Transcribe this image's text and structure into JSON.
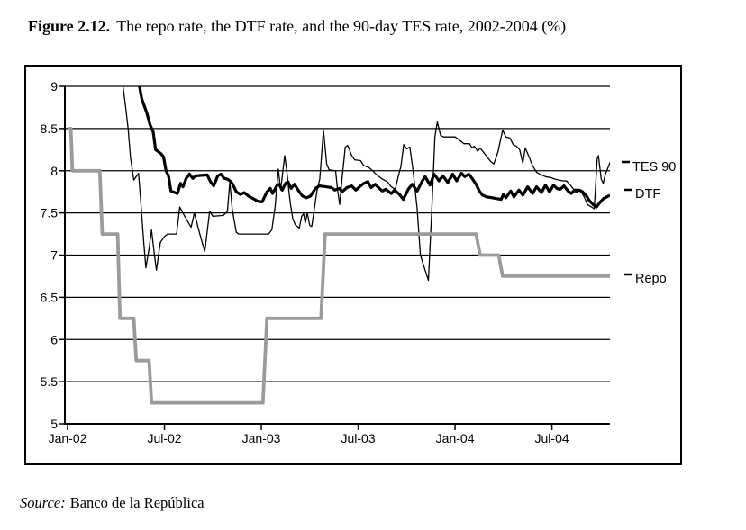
{
  "figure": {
    "title_label": "Figure 2.12.",
    "title_text": "The repo rate, the DTF rate, and the 90-day TES rate, 2002-2004 (%)",
    "source_label": "Source:",
    "source_text": "Banco de la República"
  },
  "chart_data": {
    "type": "line",
    "title": "The repo rate, the DTF rate, and the 90-day TES rate, 2002-2004 (%)",
    "xlabel": "",
    "ylabel": "",
    "grid": true,
    "legend_position": "right-inside",
    "x_axis": {
      "unit": "months-since-Jan-2002",
      "tick_months": [
        0,
        6,
        12,
        18,
        24,
        30
      ],
      "tick_labels": [
        "Jan-02",
        "Jul-02",
        "Jan-03",
        "Jul-03",
        "Jan-04",
        "Jul-04"
      ],
      "x_max_month": 33.6
    },
    "y_axis": {
      "range": [
        5,
        9
      ],
      "ticks": [
        5,
        5.5,
        6,
        6.5,
        7,
        7.5,
        8,
        8.5,
        9
      ],
      "tick_labels": [
        "5",
        "5.5",
        "6",
        "6.5",
        "7",
        "7.5",
        "8",
        "8.5",
        "9"
      ]
    },
    "series": [
      {
        "name": "TES 90",
        "color": "#000000",
        "stroke_width": 1.3,
        "points": [
          [
            3.4,
            9.05
          ],
          [
            3.6,
            8.75
          ],
          [
            3.75,
            8.5
          ],
          [
            3.9,
            8.15
          ],
          [
            4.1,
            7.89
          ],
          [
            4.25,
            7.93
          ],
          [
            4.4,
            7.97
          ],
          [
            4.55,
            7.6
          ],
          [
            4.7,
            7.2
          ],
          [
            4.85,
            6.85
          ],
          [
            5.05,
            7.08
          ],
          [
            5.2,
            7.3
          ],
          [
            5.35,
            7.05
          ],
          [
            5.5,
            6.82
          ],
          [
            5.75,
            7.15
          ],
          [
            6.0,
            7.22
          ],
          [
            6.2,
            7.25
          ],
          [
            6.75,
            7.25
          ],
          [
            6.95,
            7.57
          ],
          [
            7.2,
            7.48
          ],
          [
            7.5,
            7.38
          ],
          [
            7.65,
            7.33
          ],
          [
            7.85,
            7.5
          ],
          [
            8.15,
            7.28
          ],
          [
            8.5,
            7.04
          ],
          [
            8.8,
            7.52
          ],
          [
            9.0,
            7.46
          ],
          [
            9.65,
            7.47
          ],
          [
            9.9,
            7.52
          ],
          [
            10.05,
            7.87
          ],
          [
            10.2,
            7.54
          ],
          [
            10.45,
            7.27
          ],
          [
            10.6,
            7.25
          ],
          [
            12.45,
            7.25
          ],
          [
            12.65,
            7.3
          ],
          [
            12.85,
            7.57
          ],
          [
            13.05,
            8.02
          ],
          [
            13.2,
            7.77
          ],
          [
            13.45,
            8.18
          ],
          [
            13.6,
            7.96
          ],
          [
            13.7,
            7.77
          ],
          [
            13.8,
            7.61
          ],
          [
            13.95,
            7.43
          ],
          [
            14.1,
            7.36
          ],
          [
            14.35,
            7.32
          ],
          [
            14.5,
            7.46
          ],
          [
            14.62,
            7.49
          ],
          [
            14.72,
            7.38
          ],
          [
            14.85,
            7.5
          ],
          [
            15.0,
            7.35
          ],
          [
            15.12,
            7.34
          ],
          [
            15.3,
            7.57
          ],
          [
            15.45,
            7.77
          ],
          [
            15.62,
            7.9
          ],
          [
            15.85,
            8.48
          ],
          [
            16.05,
            8.08
          ],
          [
            16.2,
            8.01
          ],
          [
            16.6,
            8.0
          ],
          [
            16.72,
            7.78
          ],
          [
            16.85,
            7.6
          ],
          [
            17.0,
            7.9
          ],
          [
            17.2,
            8.28
          ],
          [
            17.35,
            8.3
          ],
          [
            17.6,
            8.18
          ],
          [
            17.78,
            8.13
          ],
          [
            18.15,
            8.12
          ],
          [
            18.35,
            8.06
          ],
          [
            18.65,
            8.04
          ],
          [
            18.9,
            8.0
          ],
          [
            19.15,
            7.95
          ],
          [
            19.5,
            7.9
          ],
          [
            19.8,
            7.87
          ],
          [
            20.05,
            7.81
          ],
          [
            20.3,
            7.78
          ],
          [
            20.5,
            7.95
          ],
          [
            20.65,
            8.05
          ],
          [
            20.82,
            8.31
          ],
          [
            21.0,
            8.26
          ],
          [
            21.2,
            8.28
          ],
          [
            21.4,
            8.0
          ],
          [
            21.65,
            7.55
          ],
          [
            21.85,
            7.0
          ],
          [
            22.1,
            6.85
          ],
          [
            22.35,
            6.7
          ],
          [
            22.55,
            7.5
          ],
          [
            22.75,
            8.4
          ],
          [
            22.9,
            8.58
          ],
          [
            23.1,
            8.42
          ],
          [
            23.3,
            8.4
          ],
          [
            24.0,
            8.4
          ],
          [
            24.35,
            8.35
          ],
          [
            24.55,
            8.32
          ],
          [
            24.9,
            8.32
          ],
          [
            25.05,
            8.27
          ],
          [
            25.2,
            8.29
          ],
          [
            25.4,
            8.23
          ],
          [
            25.55,
            8.27
          ],
          [
            25.8,
            8.21
          ],
          [
            26.0,
            8.16
          ],
          [
            26.2,
            8.11
          ],
          [
            26.4,
            8.08
          ],
          [
            26.65,
            8.22
          ],
          [
            26.95,
            8.48
          ],
          [
            27.15,
            8.4
          ],
          [
            27.4,
            8.39
          ],
          [
            27.6,
            8.31
          ],
          [
            27.8,
            8.29
          ],
          [
            28.0,
            8.25
          ],
          [
            28.2,
            8.09
          ],
          [
            28.35,
            8.27
          ],
          [
            28.55,
            8.18
          ],
          [
            28.8,
            8.06
          ],
          [
            29.05,
            7.98
          ],
          [
            29.35,
            7.95
          ],
          [
            29.6,
            7.93
          ],
          [
            29.9,
            7.92
          ],
          [
            30.2,
            7.9
          ],
          [
            30.45,
            7.89
          ],
          [
            30.65,
            7.88
          ],
          [
            30.9,
            7.88
          ],
          [
            31.1,
            7.84
          ],
          [
            31.3,
            7.79
          ],
          [
            31.5,
            7.74
          ],
          [
            31.75,
            7.77
          ],
          [
            32.0,
            7.69
          ],
          [
            32.2,
            7.6
          ],
          [
            32.45,
            7.57
          ],
          [
            32.62,
            7.55
          ],
          [
            32.8,
            8.14
          ],
          [
            32.88,
            8.18
          ],
          [
            33.05,
            7.9
          ],
          [
            33.18,
            7.85
          ],
          [
            33.3,
            7.95
          ],
          [
            33.5,
            8.05
          ],
          [
            33.6,
            8.1
          ]
        ]
      },
      {
        "name": "DTF",
        "color": "#000000",
        "stroke_width": 3.2,
        "points": [
          [
            4.4,
            9.06
          ],
          [
            4.6,
            8.85
          ],
          [
            4.9,
            8.69
          ],
          [
            5.1,
            8.55
          ],
          [
            5.3,
            8.46
          ],
          [
            5.45,
            8.25
          ],
          [
            5.8,
            8.2
          ],
          [
            5.95,
            8.16
          ],
          [
            6.1,
            8.0
          ],
          [
            6.25,
            7.94
          ],
          [
            6.4,
            7.76
          ],
          [
            6.8,
            7.73
          ],
          [
            7.0,
            7.85
          ],
          [
            7.15,
            7.81
          ],
          [
            7.35,
            7.91
          ],
          [
            7.55,
            7.96
          ],
          [
            7.75,
            7.91
          ],
          [
            7.95,
            7.94
          ],
          [
            8.65,
            7.95
          ],
          [
            8.85,
            7.87
          ],
          [
            9.05,
            7.82
          ],
          [
            9.3,
            7.94
          ],
          [
            9.5,
            7.96
          ],
          [
            9.7,
            7.91
          ],
          [
            9.9,
            7.9
          ],
          [
            10.05,
            7.88
          ],
          [
            10.2,
            7.85
          ],
          [
            10.45,
            7.75
          ],
          [
            10.7,
            7.72
          ],
          [
            10.95,
            7.74
          ],
          [
            11.2,
            7.7
          ],
          [
            11.5,
            7.67
          ],
          [
            11.75,
            7.64
          ],
          [
            12.05,
            7.63
          ],
          [
            12.35,
            7.75
          ],
          [
            12.55,
            7.79
          ],
          [
            12.7,
            7.73
          ],
          [
            12.95,
            7.82
          ],
          [
            13.1,
            7.84
          ],
          [
            13.3,
            7.77
          ],
          [
            13.5,
            7.85
          ],
          [
            13.65,
            7.87
          ],
          [
            13.85,
            7.79
          ],
          [
            14.05,
            7.84
          ],
          [
            14.35,
            7.75
          ],
          [
            14.55,
            7.7
          ],
          [
            14.8,
            7.68
          ],
          [
            15.05,
            7.7
          ],
          [
            15.35,
            7.79
          ],
          [
            15.6,
            7.82
          ],
          [
            16.0,
            7.81
          ],
          [
            16.35,
            7.8
          ],
          [
            16.55,
            7.77
          ],
          [
            16.85,
            7.79
          ],
          [
            17.0,
            7.75
          ],
          [
            17.3,
            7.8
          ],
          [
            17.6,
            7.82
          ],
          [
            17.85,
            7.77
          ],
          [
            18.15,
            7.82
          ],
          [
            18.35,
            7.85
          ],
          [
            18.6,
            7.87
          ],
          [
            18.8,
            7.8
          ],
          [
            19.05,
            7.84
          ],
          [
            19.25,
            7.8
          ],
          [
            19.5,
            7.76
          ],
          [
            19.7,
            7.78
          ],
          [
            19.85,
            7.76
          ],
          [
            20.05,
            7.73
          ],
          [
            20.25,
            7.77
          ],
          [
            20.55,
            7.72
          ],
          [
            20.8,
            7.66
          ],
          [
            21.1,
            7.78
          ],
          [
            21.35,
            7.84
          ],
          [
            21.65,
            7.76
          ],
          [
            21.95,
            7.87
          ],
          [
            22.15,
            7.93
          ],
          [
            22.45,
            7.83
          ],
          [
            22.7,
            7.96
          ],
          [
            23.0,
            7.88
          ],
          [
            23.25,
            7.94
          ],
          [
            23.55,
            7.86
          ],
          [
            23.85,
            7.96
          ],
          [
            24.1,
            7.88
          ],
          [
            24.4,
            7.97
          ],
          [
            24.6,
            7.93
          ],
          [
            24.85,
            7.96
          ],
          [
            25.05,
            7.91
          ],
          [
            25.3,
            7.84
          ],
          [
            25.5,
            7.76
          ],
          [
            25.7,
            7.71
          ],
          [
            25.95,
            7.69
          ],
          [
            26.3,
            7.68
          ],
          [
            26.55,
            7.67
          ],
          [
            26.85,
            7.66
          ],
          [
            27.0,
            7.72
          ],
          [
            27.15,
            7.68
          ],
          [
            27.45,
            7.76
          ],
          [
            27.65,
            7.69
          ],
          [
            27.95,
            7.77
          ],
          [
            28.2,
            7.71
          ],
          [
            28.5,
            7.81
          ],
          [
            28.8,
            7.73
          ],
          [
            29.05,
            7.81
          ],
          [
            29.35,
            7.74
          ],
          [
            29.6,
            7.83
          ],
          [
            29.85,
            7.75
          ],
          [
            30.1,
            7.83
          ],
          [
            30.3,
            7.79
          ],
          [
            30.5,
            7.78
          ],
          [
            30.75,
            7.82
          ],
          [
            31.0,
            7.76
          ],
          [
            31.2,
            7.73
          ],
          [
            31.4,
            7.77
          ],
          [
            31.7,
            7.77
          ],
          [
            31.9,
            7.75
          ],
          [
            32.15,
            7.7
          ],
          [
            32.3,
            7.65
          ],
          [
            32.55,
            7.6
          ],
          [
            32.75,
            7.57
          ],
          [
            33.0,
            7.63
          ],
          [
            33.2,
            7.67
          ],
          [
            33.4,
            7.69
          ],
          [
            33.6,
            7.71
          ]
        ]
      },
      {
        "name": "Repo",
        "color": "#9b9b9b",
        "stroke_width": 3.8,
        "points": [
          [
            0,
            8.5
          ],
          [
            0.2,
            8.5
          ],
          [
            0.3,
            8.0
          ],
          [
            2.0,
            8.0
          ],
          [
            2.15,
            7.25
          ],
          [
            3.1,
            7.25
          ],
          [
            3.25,
            6.25
          ],
          [
            4.1,
            6.25
          ],
          [
            4.25,
            5.75
          ],
          [
            5.05,
            5.75
          ],
          [
            5.2,
            5.25
          ],
          [
            12.1,
            5.25
          ],
          [
            12.35,
            6.25
          ],
          [
            15.7,
            6.25
          ],
          [
            15.95,
            7.25
          ],
          [
            25.3,
            7.25
          ],
          [
            25.55,
            7.0
          ],
          [
            26.7,
            7.0
          ],
          [
            26.95,
            6.75
          ],
          [
            33.6,
            6.75
          ]
        ]
      }
    ]
  }
}
